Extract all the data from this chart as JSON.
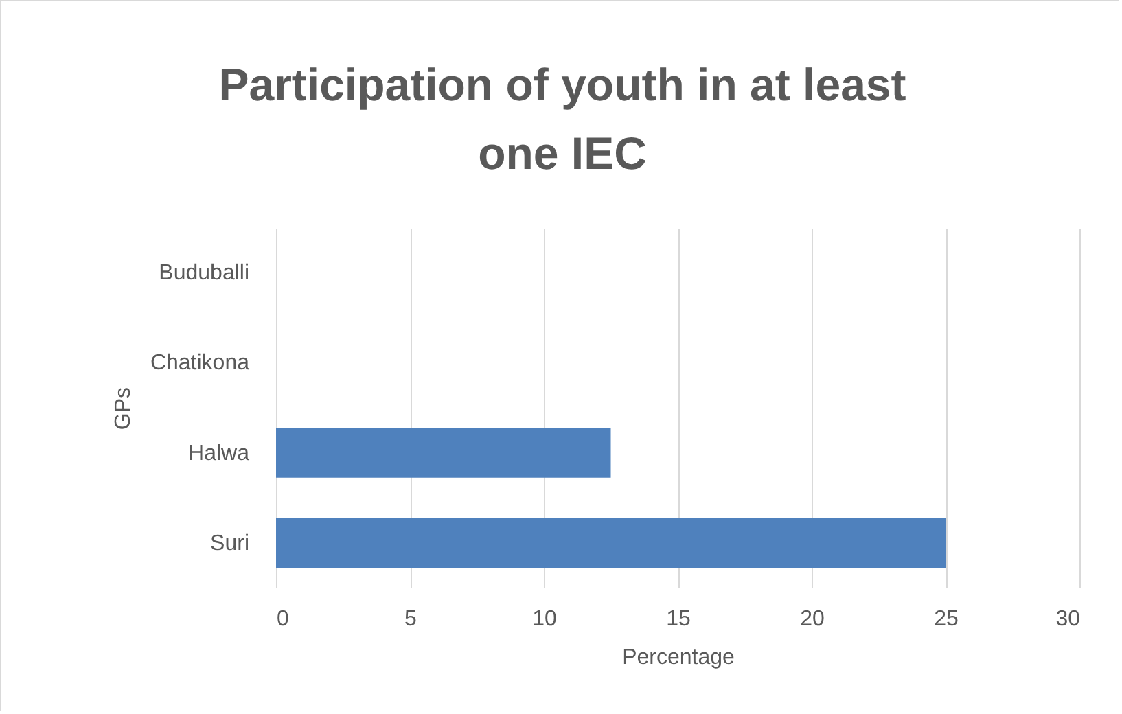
{
  "chart_data": {
    "type": "bar",
    "orientation": "horizontal",
    "title": "Participation of youth in at least one IEC",
    "xlabel": "Percentage",
    "ylabel": "GPs",
    "categories": [
      "Buduballi",
      "Chatikona",
      "Halwa",
      "Suri"
    ],
    "values": [
      0,
      0,
      12.5,
      25
    ],
    "color": "#4f81bd",
    "xlim": [
      0,
      30
    ],
    "xticks": [
      0,
      5,
      10,
      15,
      20,
      25,
      30
    ],
    "grid": "x"
  }
}
